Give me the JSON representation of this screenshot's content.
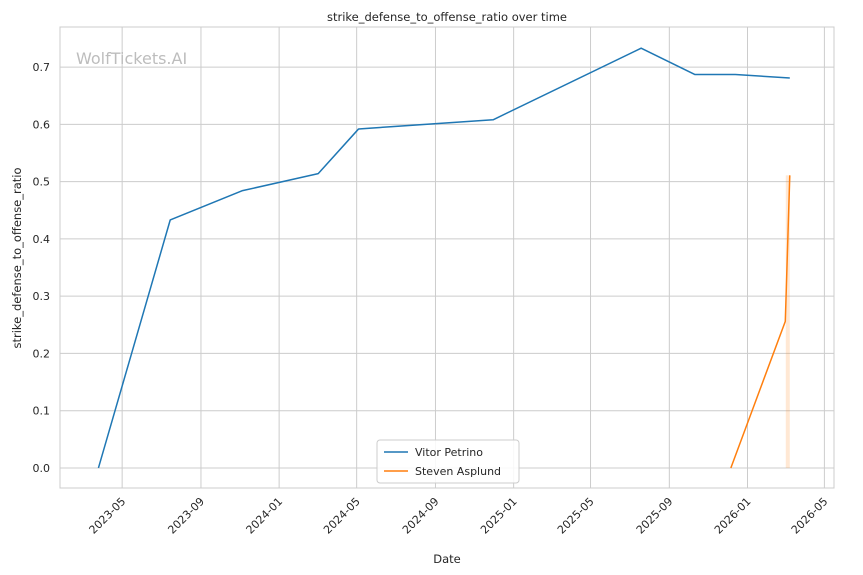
{
  "chart_data": {
    "type": "line",
    "title": "strike_defense_to_offense_ratio over time",
    "xlabel": "Date",
    "ylabel": "strike_defense_to_offense_ratio",
    "watermark": "WolfTickets.AI",
    "xlim": [
      "2023-01-24",
      "2026-05-16"
    ],
    "ylim": [
      -0.035,
      0.77
    ],
    "x_ticks": [
      "2023-05",
      "2023-09",
      "2024-01",
      "2024-05",
      "2024-09",
      "2025-01",
      "2025-05",
      "2025-09",
      "2026-01",
      "2026-05"
    ],
    "x_tick_dates": [
      "2023-05-01",
      "2023-09-01",
      "2024-01-01",
      "2024-05-01",
      "2024-09-01",
      "2025-01-01",
      "2025-05-01",
      "2025-09-01",
      "2026-01-01",
      "2026-05-01"
    ],
    "y_ticks": [
      0.0,
      0.1,
      0.2,
      0.3,
      0.4,
      0.5,
      0.6,
      0.7
    ],
    "y_tick_labels": [
      "0.0",
      "0.1",
      "0.2",
      "0.3",
      "0.4",
      "0.5",
      "0.6",
      "0.7"
    ],
    "grid": true,
    "legend_position": "bottom-center",
    "series": [
      {
        "name": "Vitor Petrino",
        "color": "#1f77b4",
        "x": [
          "2023-03-25",
          "2023-07-15",
          "2023-11-04",
          "2024-03-02",
          "2024-05-04",
          "2024-11-30",
          "2025-07-19",
          "2025-10-11",
          "2025-12-13",
          "2026-03-08"
        ],
        "y": [
          0.0,
          0.433,
          0.484,
          0.514,
          0.592,
          0.608,
          0.733,
          0.687,
          0.687,
          0.681
        ]
      },
      {
        "name": "Steven Asplund",
        "color": "#ff7f0e",
        "x": [
          "2025-12-06",
          "2026-03-01",
          "2026-03-08"
        ],
        "y": [
          0.0,
          0.256,
          0.511
        ]
      }
    ]
  }
}
